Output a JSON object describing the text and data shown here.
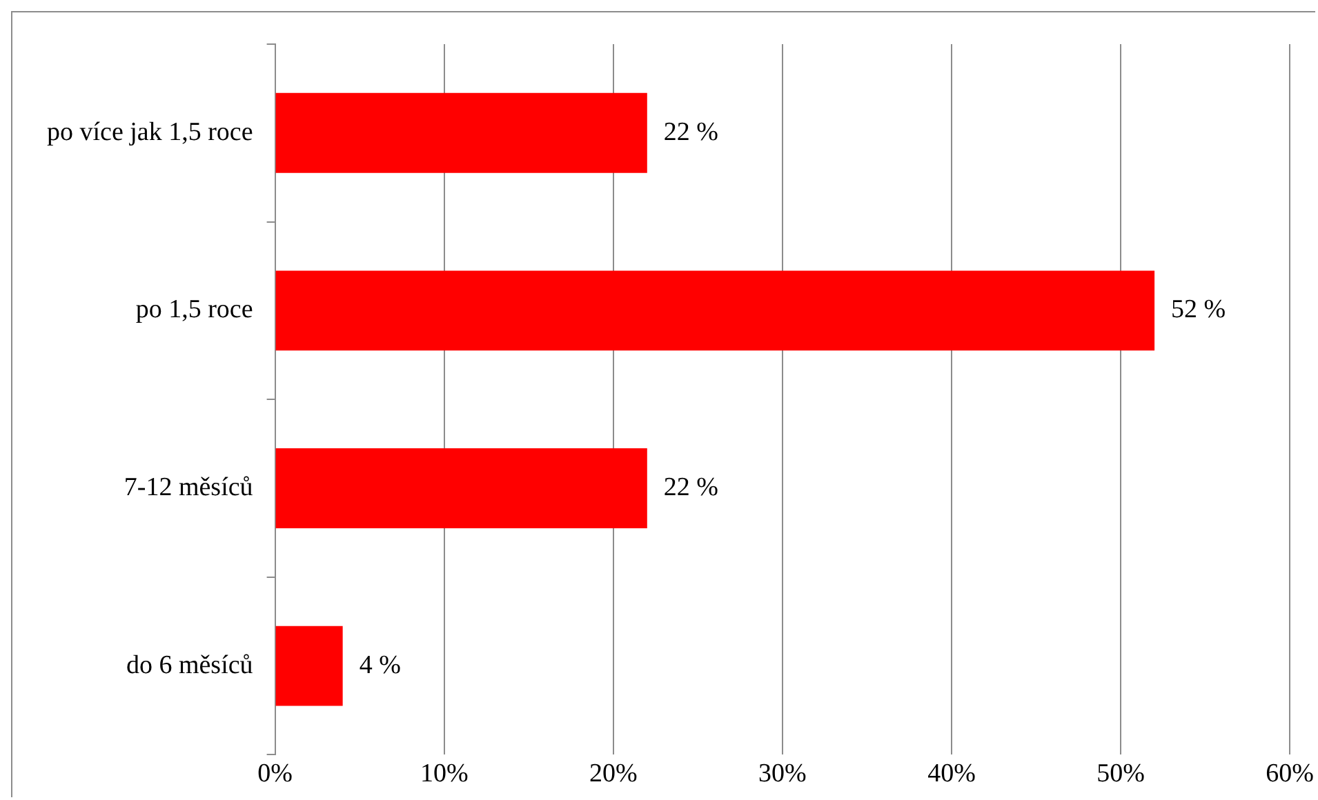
{
  "chart_data": {
    "type": "bar",
    "orientation": "horizontal",
    "categories": [
      "po více jak 1,5 roce",
      "po 1,5 roce",
      "7-12 měsíců",
      "do 6 měsíců"
    ],
    "values": [
      22,
      52,
      22,
      4
    ],
    "color": "#ff0000",
    "value_labels": [
      "22 %",
      "52 %",
      "22 %",
      "4 %"
    ],
    "xlim": [
      0,
      60
    ],
    "xticks": [
      {
        "value": 0,
        "label": "0%"
      },
      {
        "value": 10,
        "label": "10%"
      },
      {
        "value": 20,
        "label": "20%"
      },
      {
        "value": 30,
        "label": "30%"
      },
      {
        "value": 40,
        "label": "40%"
      },
      {
        "value": 50,
        "label": "50%"
      },
      {
        "value": 60,
        "label": "60%"
      }
    ],
    "grid": "x",
    "legend": false
  }
}
